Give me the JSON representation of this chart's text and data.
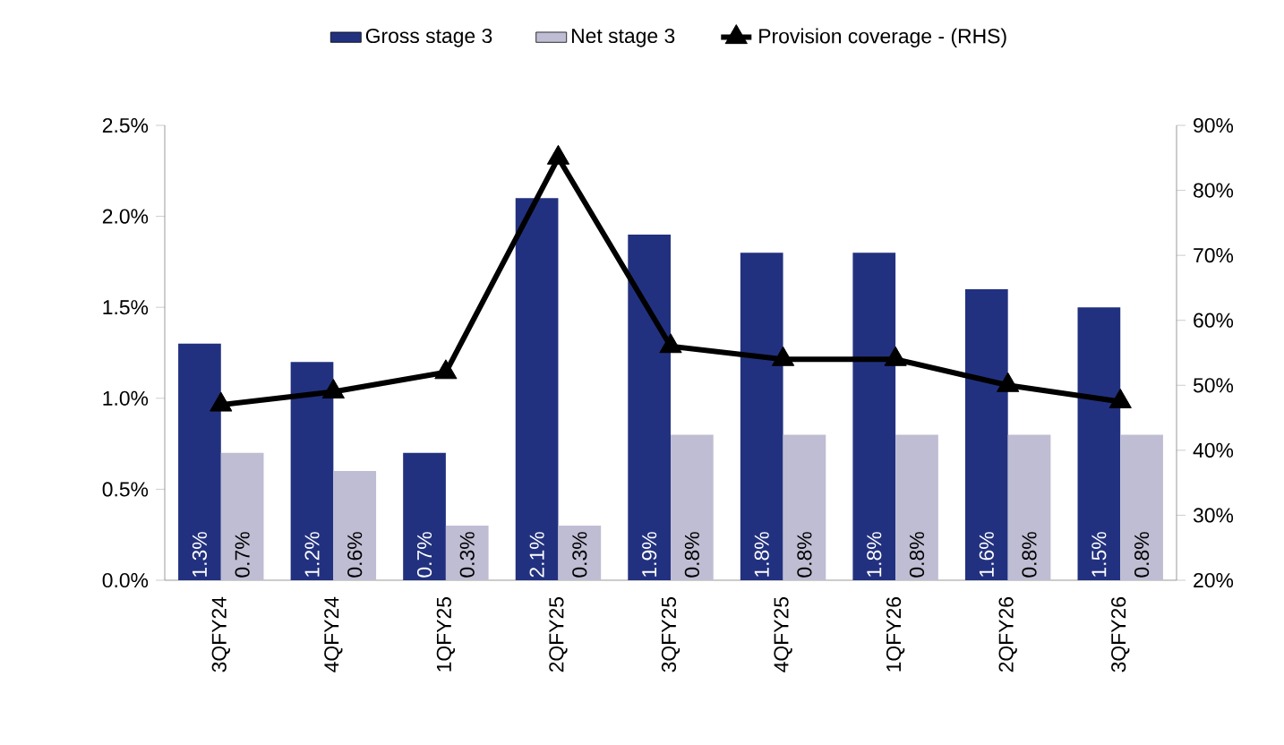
{
  "chart_data": {
    "type": "bar",
    "categories": [
      "3QFY24",
      "4QFY24",
      "1QFY25",
      "2QFY25",
      "3QFY25",
      "4QFY25",
      "1QFY26",
      "2QFY26",
      "3QFY26"
    ],
    "series": [
      {
        "name": "Gross stage 3",
        "color": "#22317f",
        "values": [
          1.3,
          1.2,
          0.7,
          2.1,
          1.9,
          1.8,
          1.8,
          1.6,
          1.5
        ],
        "value_labels": [
          "1.3%",
          "1.2%",
          "0.7%",
          "2.1%",
          "1.9%",
          "1.8%",
          "1.8%",
          "1.6%",
          "1.5%"
        ]
      },
      {
        "name": "Net stage 3",
        "color": "#bfbdd3",
        "values": [
          0.7,
          0.6,
          0.3,
          0.3,
          0.8,
          0.8,
          0.8,
          0.8,
          0.8
        ],
        "value_labels": [
          "0.7%",
          "0.6%",
          "0.3%",
          "0.3%",
          "0.8%",
          "0.8%",
          "0.8%",
          "0.8%",
          "0.8%"
        ]
      },
      {
        "name": "Provision coverage - (RHS)",
        "type": "line",
        "axis": "y2",
        "color": "#000000",
        "marker": "triangle",
        "values": [
          47,
          49,
          52,
          85,
          56,
          54,
          54,
          50,
          47.5
        ]
      }
    ],
    "ylim": [
      0,
      2.5
    ],
    "yticks": [
      {
        "value": 0,
        "label": "0.0%"
      },
      {
        "value": 0.5,
        "label": "0.5%"
      },
      {
        "value": 1,
        "label": "1.0%"
      },
      {
        "value": 1.5,
        "label": "1.5%"
      },
      {
        "value": 2,
        "label": "2.0%"
      },
      {
        "value": 2.5,
        "label": "2.5%"
      }
    ],
    "y2lim": [
      20,
      90
    ],
    "y2ticks": [
      {
        "value": 20,
        "label": "20%"
      },
      {
        "value": 30,
        "label": "30%"
      },
      {
        "value": 40,
        "label": "40%"
      },
      {
        "value": 50,
        "label": "50%"
      },
      {
        "value": 60,
        "label": "60%"
      },
      {
        "value": 70,
        "label": "70%"
      },
      {
        "value": 80,
        "label": "80%"
      },
      {
        "value": 90,
        "label": "90%"
      }
    ],
    "legend": "top"
  }
}
